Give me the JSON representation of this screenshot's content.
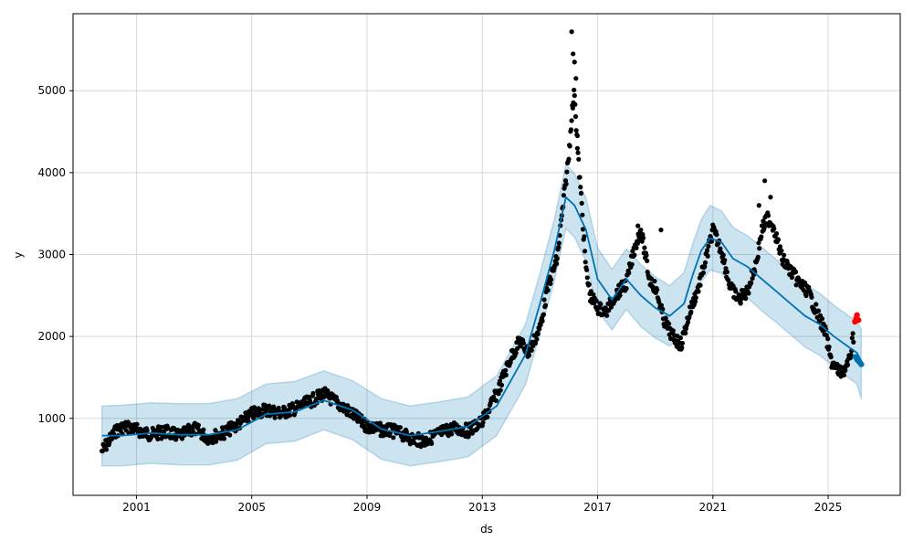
{
  "chart_data": {
    "type": "line",
    "title": "",
    "xlabel": "ds",
    "ylabel": "y",
    "x_ticks": [
      2001,
      2005,
      2009,
      2013,
      2017,
      2021,
      2025
    ],
    "y_ticks": [
      1000,
      2000,
      3000,
      4000,
      5000
    ],
    "x_range": [
      1998.8,
      2027.5
    ],
    "y_range": [
      60,
      5940
    ],
    "grid": true,
    "forecast_line": {
      "x": [
        1999.8,
        2000.5,
        2001.5,
        2002.5,
        2003.5,
        2004.5,
        2005.5,
        2006.5,
        2007.5,
        2008.5,
        2009.5,
        2010.5,
        2011.5,
        2012.5,
        2013.5,
        2014.5,
        2015.0,
        2015.5,
        2015.9,
        2016.2,
        2016.6,
        2017.0,
        2017.5,
        2018.0,
        2018.5,
        2019.0,
        2019.5,
        2020.0,
        2020.3,
        2020.6,
        2020.9,
        2021.3,
        2021.7,
        2022.2,
        2022.7,
        2023.2,
        2023.7,
        2024.2,
        2024.7,
        2025.2,
        2025.6,
        2026.0,
        2026.15
      ],
      "y": [
        790,
        790,
        820,
        800,
        800,
        860,
        1050,
        1080,
        1220,
        1100,
        870,
        790,
        840,
        900,
        1150,
        1780,
        2400,
        3050,
        3700,
        3600,
        3300,
        2700,
        2450,
        2700,
        2500,
        2350,
        2250,
        2400,
        2750,
        3050,
        3200,
        3150,
        2950,
        2850,
        2700,
        2550,
        2400,
        2250,
        2150,
        2000,
        1900,
        1800,
        1700
      ]
    },
    "uncertainty_band": {
      "upper": [
        1150,
        1160,
        1190,
        1180,
        1180,
        1240,
        1420,
        1450,
        1580,
        1460,
        1240,
        1150,
        1200,
        1260,
        1520,
        2150,
        2770,
        3430,
        4100,
        3990,
        3690,
        3080,
        2820,
        3070,
        2880,
        2730,
        2620,
        2780,
        3130,
        3430,
        3600,
        3530,
        3330,
        3230,
        3090,
        2940,
        2780,
        2630,
        2530,
        2380,
        2280,
        2180,
        2090
      ],
      "lower": [
        420,
        420,
        450,
        430,
        430,
        490,
        690,
        720,
        860,
        740,
        500,
        420,
        470,
        530,
        790,
        1410,
        2030,
        2680,
        3320,
        3210,
        2920,
        2320,
        2080,
        2330,
        2120,
        1980,
        1880,
        2020,
        2370,
        2670,
        2810,
        2770,
        2570,
        2470,
        2310,
        2170,
        2020,
        1870,
        1770,
        1630,
        1520,
        1420,
        1230
      ]
    },
    "observed_series": {
      "x": [
        1999.8,
        2000.0,
        2000.3,
        2000.6,
        2001.0,
        2001.5,
        2002.0,
        2002.5,
        2003.0,
        2003.5,
        2004.0,
        2004.5,
        2005.0,
        2005.5,
        2006.0,
        2006.5,
        2007.0,
        2007.5,
        2008.0,
        2008.5,
        2009.0,
        2009.5,
        2010.0,
        2010.5,
        2011.0,
        2011.5,
        2012.0,
        2012.5,
        2013.0,
        2013.5,
        2014.0,
        2014.3,
        2014.6,
        2015.0,
        2015.3,
        2015.6,
        2015.8,
        2016.0,
        2016.1,
        2016.2,
        2016.3,
        2016.45,
        2016.6,
        2016.75,
        2017.0,
        2017.3,
        2017.6,
        2018.0,
        2018.3,
        2018.5,
        2018.8,
        2019.0,
        2019.3,
        2019.6,
        2019.9,
        2020.2,
        2020.5,
        2020.8,
        2021.0,
        2021.3,
        2021.6,
        2021.9,
        2022.2,
        2022.5,
        2022.7,
        2022.9,
        2023.1,
        2023.4,
        2023.7,
        2024.0,
        2024.3,
        2024.6,
        2024.9,
        2025.1,
        2025.4,
        2025.7,
        2025.9
      ],
      "y": [
        600,
        700,
        850,
        900,
        860,
        800,
        840,
        780,
        880,
        760,
        820,
        920,
        1050,
        1110,
        1060,
        1120,
        1200,
        1300,
        1180,
        1050,
        900,
        860,
        840,
        760,
        720,
        820,
        880,
        850,
        960,
        1300,
        1750,
        1950,
        1800,
        2100,
        2650,
        2950,
        3600,
        4200,
        4700,
        5000,
        4300,
        3600,
        2800,
        2500,
        2350,
        2300,
        2500,
        2650,
        3100,
        3300,
        2700,
        2600,
        2200,
        2000,
        1900,
        2300,
        2600,
        3000,
        3300,
        3050,
        2600,
        2450,
        2550,
        2900,
        3300,
        3450,
        3350,
        2950,
        2800,
        2650,
        2550,
        2300,
        2050,
        1700,
        1550,
        1650,
        2050
      ]
    },
    "observed_outliers": {
      "x": [
        2016.1,
        2016.15,
        2016.2,
        2016.25,
        2016.3,
        2018.4,
        2018.5,
        2019.2,
        2022.6,
        2022.8,
        2023.0
      ],
      "y": [
        5720,
        5450,
        5350,
        5150,
        4450,
        3350,
        3300,
        3300,
        3600,
        3900,
        3700
      ]
    },
    "highlight_points": {
      "x": [
        2025.93,
        2025.97,
        2026.0,
        2026.05
      ],
      "y": [
        2180,
        2220,
        2260,
        2200
      ]
    },
    "forecast_tail": {
      "x": [
        2025.95,
        2026.0,
        2026.05,
        2026.1,
        2026.15
      ],
      "y": [
        1750,
        1720,
        1700,
        1680,
        1660
      ]
    },
    "colors": {
      "band": "#0072b2",
      "line": "#0072b2",
      "observed": "#000000",
      "highlight": "#ff0000",
      "grid": "#d8d8d8"
    }
  }
}
